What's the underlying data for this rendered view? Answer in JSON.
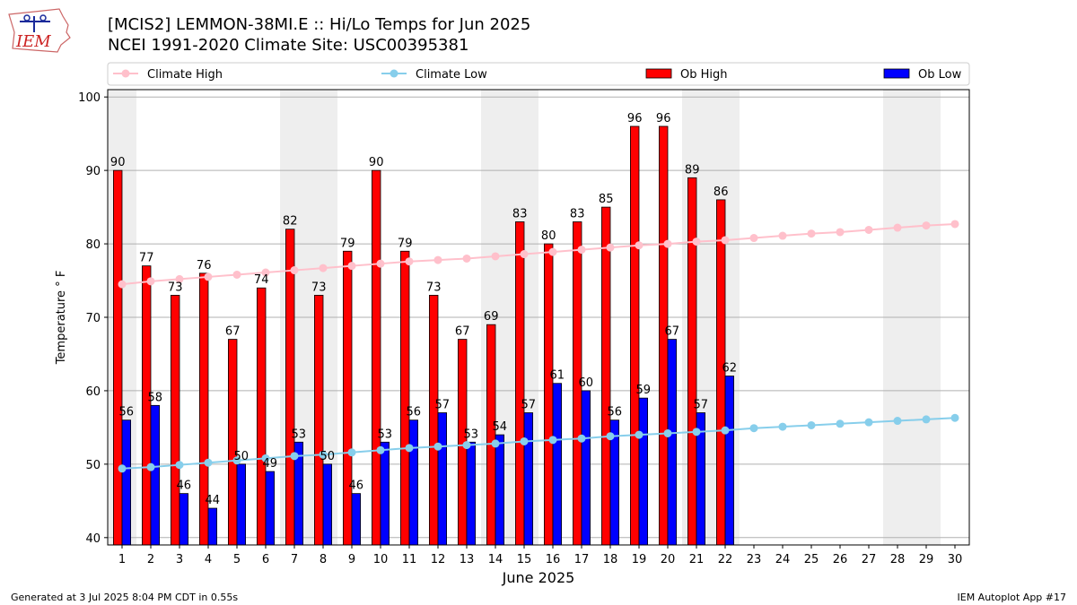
{
  "header": {
    "title_line1": "[MCIS2] LEMMON-38MI.E :: Hi/Lo Temps for Jun 2025",
    "title_line2": "NCEI 1991-2020 Climate Site: USC00395381",
    "logo_text": "IEM"
  },
  "footer": {
    "generated": "Generated at 3 Jul 2025 8:04 PM CDT in 0.55s",
    "app": "IEM Autoplot App #17"
  },
  "colors": {
    "climate_high": "#ffc0cb",
    "climate_low": "#87ceeb",
    "ob_high": "#ff0000",
    "ob_low": "#0000ff",
    "weekend_band": "#eeeeee",
    "grid": "#b0b0b0"
  },
  "chart_data": {
    "type": "bar",
    "xlabel": "June 2025",
    "ylabel": "Temperature ° F",
    "ylim": [
      39,
      101
    ],
    "yticks": [
      40,
      50,
      60,
      70,
      80,
      90,
      100
    ],
    "xlim": [
      0.5,
      30.5
    ],
    "grid": "horizontal",
    "legend_position": "top",
    "weekend_days": [
      1,
      7,
      8,
      14,
      15,
      21,
      22,
      28,
      29
    ],
    "categories": [
      1,
      2,
      3,
      4,
      5,
      6,
      7,
      8,
      9,
      10,
      11,
      12,
      13,
      14,
      15,
      16,
      17,
      18,
      19,
      20,
      21,
      22,
      23,
      24,
      25,
      26,
      27,
      28,
      29,
      30
    ],
    "series": [
      {
        "name": "Climate High",
        "kind": "line",
        "values": [
          74.5,
          74.9,
          75.2,
          75.5,
          75.8,
          76.1,
          76.4,
          76.7,
          77.0,
          77.3,
          77.6,
          77.8,
          78.0,
          78.3,
          78.6,
          78.9,
          79.2,
          79.5,
          79.8,
          80.0,
          80.3,
          80.5,
          80.8,
          81.1,
          81.4,
          81.6,
          81.9,
          82.2,
          82.5,
          82.7
        ]
      },
      {
        "name": "Climate Low",
        "kind": "line",
        "values": [
          49.4,
          49.6,
          49.9,
          50.2,
          50.5,
          50.8,
          51.1,
          51.3,
          51.6,
          51.9,
          52.2,
          52.4,
          52.6,
          52.8,
          53.1,
          53.3,
          53.5,
          53.8,
          54.0,
          54.2,
          54.4,
          54.6,
          54.9,
          55.1,
          55.3,
          55.5,
          55.7,
          55.9,
          56.1,
          56.3
        ]
      },
      {
        "name": "Ob High",
        "kind": "bar",
        "values": [
          90,
          77,
          73,
          76,
          67,
          74,
          82,
          73,
          79,
          90,
          79,
          73,
          67,
          69,
          83,
          80,
          83,
          85,
          96,
          96,
          89,
          86,
          null,
          null,
          null,
          null,
          null,
          null,
          null,
          null
        ]
      },
      {
        "name": "Ob Low",
        "kind": "bar",
        "values": [
          56,
          58,
          46,
          44,
          50,
          49,
          53,
          50,
          46,
          53,
          56,
          57,
          53,
          54,
          57,
          61,
          60,
          56,
          59,
          67,
          57,
          62,
          null,
          null,
          null,
          null,
          null,
          null,
          null,
          null
        ]
      }
    ]
  }
}
